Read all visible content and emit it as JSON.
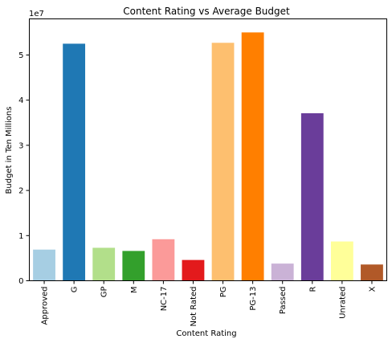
{
  "chart_data": {
    "type": "bar",
    "title": "Content Rating vs Average Budget",
    "xlabel": "Content Rating",
    "ylabel": "Budget in Ten Millions",
    "y_offset_label": "1e7",
    "ylim": [
      0,
      58000000
    ],
    "y_ticks": [
      0,
      10000000,
      20000000,
      30000000,
      40000000,
      50000000
    ],
    "y_tick_labels": [
      "0",
      "1",
      "2",
      "3",
      "4",
      "5"
    ],
    "grid": false,
    "legend": "none",
    "categories": [
      "Approved",
      "G",
      "GP",
      "M",
      "NC-17",
      "Not Rated",
      "PG",
      "PG-13",
      "Passed",
      "R",
      "Unrated",
      "X"
    ],
    "values": [
      6900000,
      52500000,
      7300000,
      6600000,
      9200000,
      4600000,
      52700000,
      55000000,
      3800000,
      37100000,
      8700000,
      3600000
    ],
    "colors": [
      "#a6cee3",
      "#1f78b4",
      "#b2df8a",
      "#33a02c",
      "#fb9a99",
      "#e31a1c",
      "#fdbf6f",
      "#ff7f00",
      "#cab2d6",
      "#6a3d9a",
      "#ffff99",
      "#b15928"
    ]
  }
}
